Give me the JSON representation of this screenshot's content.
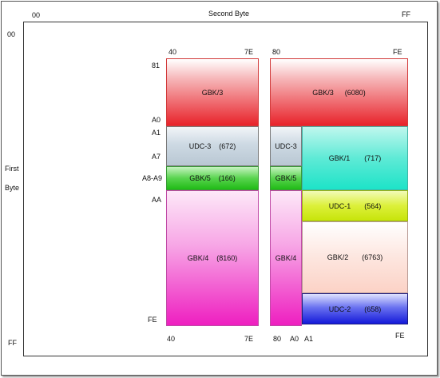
{
  "axes": {
    "x_start": "00",
    "x_title": "Second Byte",
    "x_end": "FF",
    "y_start": "00",
    "y_title_line1": "First",
    "y_title_line2": "Byte",
    "y_end": "FF"
  },
  "top_ticks": [
    "40",
    "7E",
    "80",
    "FE"
  ],
  "bottom_ticks": [
    "40",
    "7E",
    "80",
    "A0",
    "A1",
    "FE"
  ],
  "row_ticks": [
    "81",
    "A0",
    "A1",
    "A7",
    "A8-A9",
    "AA",
    "FE"
  ],
  "regions": [
    {
      "name": "GBK/3",
      "count": ""
    },
    {
      "name": "GBK/3",
      "count": "(6080)"
    },
    {
      "name": "UDC-3",
      "count": "(672)"
    },
    {
      "name": "UDC-3",
      "count": ""
    },
    {
      "name": "GBK/1",
      "count": "(717)"
    },
    {
      "name": "GBK/5",
      "count": "(166)"
    },
    {
      "name": "GBK/5",
      "count": ""
    },
    {
      "name": "UDC-1",
      "count": "(564)"
    },
    {
      "name": "GBK/4",
      "count": "(8160)"
    },
    {
      "name": "GBK/4",
      "count": ""
    },
    {
      "name": "GBK/2",
      "count": "(6763)"
    },
    {
      "name": "UDC-2",
      "count": "(658)"
    }
  ],
  "colors": {
    "gbk3_top": "#ffffff",
    "gbk3_bottom": "#e8222a",
    "udc3": "#cdd9e3",
    "gbk5": "#27c21f",
    "gbk4": "#ee1fc0",
    "gbk1": "#1de3c8",
    "udc1": "#cce80a",
    "gbk2": "#fcd9d0",
    "udc2": "#1419d9"
  }
}
